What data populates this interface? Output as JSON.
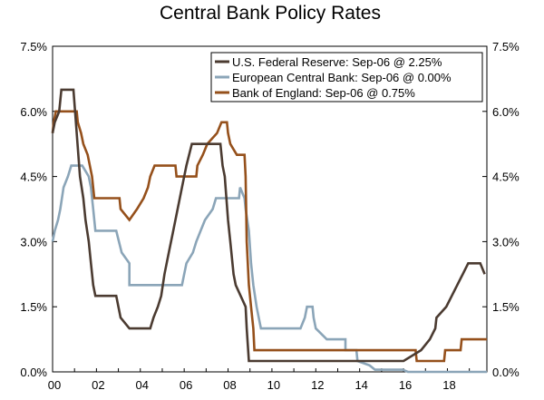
{
  "chart_data": {
    "type": "line",
    "title": "Central Bank Policy Rates",
    "xlabel": "",
    "ylabel": "",
    "xlim": [
      2000,
      2019.8
    ],
    "ylim": [
      0,
      7.5
    ],
    "x_ticks": [
      2000,
      2002,
      2004,
      2006,
      2008,
      2010,
      2012,
      2014,
      2016,
      2018
    ],
    "x_tick_labels": [
      "00",
      "02",
      "04",
      "06",
      "08",
      "10",
      "12",
      "14",
      "16",
      "18"
    ],
    "y_ticks": [
      0,
      1.5,
      3.0,
      4.5,
      6.0,
      7.5
    ],
    "y_tick_labels": [
      "0.0%",
      "1.5%",
      "3.0%",
      "4.5%",
      "6.0%",
      "7.5%"
    ],
    "dual_y_axis": true,
    "grid": false,
    "legend_position": "top-right",
    "series": [
      {
        "name": "U.S. Federal Reserve: Sep-06 @ 2.25%",
        "color": "#4b3b31",
        "points": [
          [
            2000.0,
            5.5
          ],
          [
            2000.1,
            5.75
          ],
          [
            2000.3,
            6.0
          ],
          [
            2000.4,
            6.5
          ],
          [
            2000.95,
            6.5
          ],
          [
            2001.1,
            5.5
          ],
          [
            2001.25,
            4.5
          ],
          [
            2001.4,
            4.0
          ],
          [
            2001.5,
            3.5
          ],
          [
            2001.65,
            3.0
          ],
          [
            2001.75,
            2.5
          ],
          [
            2001.85,
            2.0
          ],
          [
            2001.95,
            1.75
          ],
          [
            2002.9,
            1.75
          ],
          [
            2003.1,
            1.25
          ],
          [
            2003.5,
            1.0
          ],
          [
            2004.45,
            1.0
          ],
          [
            2004.6,
            1.25
          ],
          [
            2004.8,
            1.5
          ],
          [
            2004.95,
            1.75
          ],
          [
            2005.1,
            2.25
          ],
          [
            2005.3,
            2.75
          ],
          [
            2005.5,
            3.25
          ],
          [
            2005.7,
            3.75
          ],
          [
            2005.9,
            4.25
          ],
          [
            2006.1,
            4.75
          ],
          [
            2006.35,
            5.25
          ],
          [
            2007.65,
            5.25
          ],
          [
            2007.75,
            4.75
          ],
          [
            2007.85,
            4.5
          ],
          [
            2008.0,
            3.5
          ],
          [
            2008.1,
            3.0
          ],
          [
            2008.25,
            2.25
          ],
          [
            2008.35,
            2.0
          ],
          [
            2008.8,
            1.5
          ],
          [
            2008.85,
            1.0
          ],
          [
            2008.95,
            0.25
          ],
          [
            2015.95,
            0.25
          ],
          [
            2016.0,
            0.25
          ],
          [
            2016.8,
            0.5
          ],
          [
            2017.2,
            0.75
          ],
          [
            2017.45,
            1.0
          ],
          [
            2017.5,
            1.25
          ],
          [
            2017.95,
            1.5
          ],
          [
            2018.2,
            1.75
          ],
          [
            2018.45,
            2.0
          ],
          [
            2018.7,
            2.25
          ],
          [
            2018.95,
            2.5
          ],
          [
            2019.5,
            2.5
          ],
          [
            2019.7,
            2.25
          ]
        ]
      },
      {
        "name": "European Central Bank: Sep-06 @ 0.00%",
        "color": "#8ba5b8",
        "points": [
          [
            2000.0,
            3.0
          ],
          [
            2000.1,
            3.25
          ],
          [
            2000.25,
            3.5
          ],
          [
            2000.35,
            3.75
          ],
          [
            2000.5,
            4.25
          ],
          [
            2000.7,
            4.5
          ],
          [
            2000.85,
            4.75
          ],
          [
            2001.35,
            4.75
          ],
          [
            2001.65,
            4.5
          ],
          [
            2001.75,
            4.25
          ],
          [
            2001.85,
            3.75
          ],
          [
            2001.95,
            3.25
          ],
          [
            2002.9,
            3.25
          ],
          [
            2003.15,
            2.75
          ],
          [
            2003.5,
            2.5
          ],
          [
            2003.5,
            2.0
          ],
          [
            2005.9,
            2.0
          ],
          [
            2006.1,
            2.5
          ],
          [
            2006.4,
            2.75
          ],
          [
            2006.55,
            3.0
          ],
          [
            2006.75,
            3.25
          ],
          [
            2006.95,
            3.5
          ],
          [
            2007.3,
            3.75
          ],
          [
            2007.45,
            4.0
          ],
          [
            2008.5,
            4.0
          ],
          [
            2008.55,
            4.25
          ],
          [
            2008.75,
            4.0
          ],
          [
            2008.8,
            3.75
          ],
          [
            2008.95,
            3.25
          ],
          [
            2009.05,
            2.5
          ],
          [
            2009.15,
            2.0
          ],
          [
            2009.3,
            1.5
          ],
          [
            2009.4,
            1.25
          ],
          [
            2009.5,
            1.0
          ],
          [
            2011.3,
            1.0
          ],
          [
            2011.5,
            1.25
          ],
          [
            2011.6,
            1.5
          ],
          [
            2011.85,
            1.5
          ],
          [
            2011.9,
            1.25
          ],
          [
            2012.0,
            1.0
          ],
          [
            2012.5,
            0.75
          ],
          [
            2013.35,
            0.75
          ],
          [
            2013.35,
            0.5
          ],
          [
            2013.85,
            0.5
          ],
          [
            2013.9,
            0.25
          ],
          [
            2014.45,
            0.15
          ],
          [
            2014.7,
            0.05
          ],
          [
            2015.95,
            0.05
          ],
          [
            2016.2,
            0.0
          ],
          [
            2019.8,
            0.0
          ]
        ]
      },
      {
        "name": "Bank of England: Sep-06 @ 0.75%",
        "color": "#95501b",
        "points": [
          [
            2000.0,
            5.5
          ],
          [
            2000.05,
            5.75
          ],
          [
            2000.15,
            6.0
          ],
          [
            2001.1,
            6.0
          ],
          [
            2001.15,
            5.75
          ],
          [
            2001.3,
            5.5
          ],
          [
            2001.4,
            5.25
          ],
          [
            2001.6,
            5.0
          ],
          [
            2001.7,
            4.75
          ],
          [
            2001.8,
            4.5
          ],
          [
            2001.9,
            4.0
          ],
          [
            2003.05,
            4.0
          ],
          [
            2003.1,
            3.75
          ],
          [
            2003.5,
            3.5
          ],
          [
            2003.85,
            3.75
          ],
          [
            2004.15,
            4.0
          ],
          [
            2004.35,
            4.25
          ],
          [
            2004.45,
            4.5
          ],
          [
            2004.65,
            4.75
          ],
          [
            2005.6,
            4.75
          ],
          [
            2005.65,
            4.5
          ],
          [
            2006.55,
            4.5
          ],
          [
            2006.6,
            4.75
          ],
          [
            2006.85,
            5.0
          ],
          [
            2007.05,
            5.25
          ],
          [
            2007.5,
            5.5
          ],
          [
            2007.7,
            5.75
          ],
          [
            2007.95,
            5.75
          ],
          [
            2008.0,
            5.5
          ],
          [
            2008.1,
            5.25
          ],
          [
            2008.4,
            5.0
          ],
          [
            2008.75,
            5.0
          ],
          [
            2008.8,
            4.5
          ],
          [
            2008.85,
            3.0
          ],
          [
            2008.95,
            2.0
          ],
          [
            2009.05,
            1.5
          ],
          [
            2009.15,
            1.0
          ],
          [
            2009.2,
            0.5
          ],
          [
            2016.55,
            0.5
          ],
          [
            2016.6,
            0.25
          ],
          [
            2017.85,
            0.25
          ],
          [
            2017.9,
            0.5
          ],
          [
            2018.6,
            0.5
          ],
          [
            2018.65,
            0.75
          ],
          [
            2019.8,
            0.75
          ]
        ]
      }
    ]
  }
}
